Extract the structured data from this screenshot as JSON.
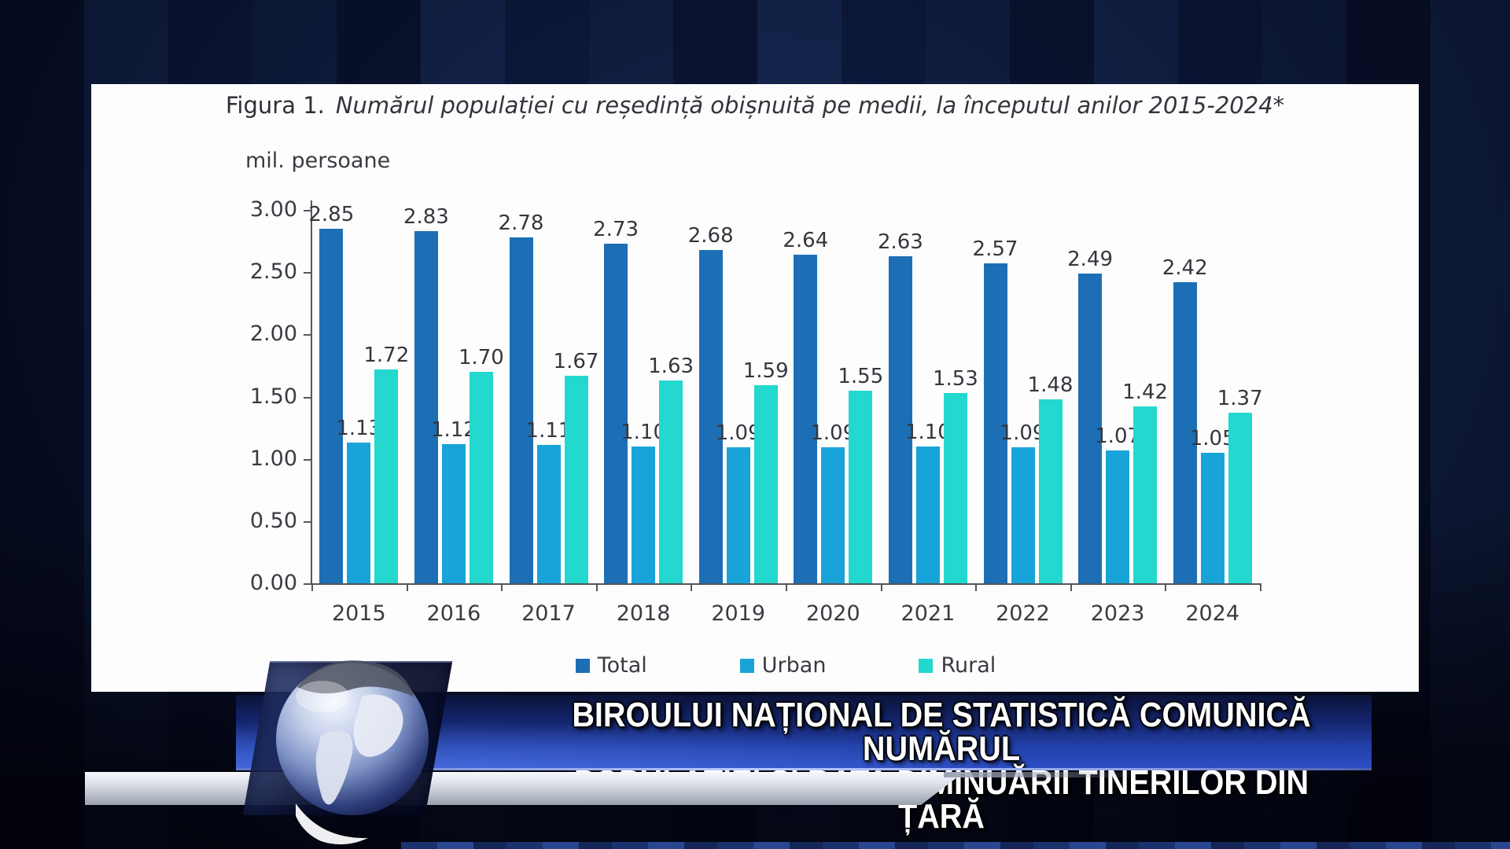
{
  "figure": {
    "label": "Figura 1.",
    "title": "Numărul populației cu reședință obișnuită pe medii, la începutul anilor 2015-2024*"
  },
  "chart_data": {
    "type": "bar",
    "title": "Numărul populației cu reședință obișnuită pe medii, la începutul anilor 2015-2024*",
    "ylabel": "mil. persoane",
    "xlabel": "",
    "ylim": [
      0,
      3.0
    ],
    "yticks": [
      "0.00",
      "0.50",
      "1.00",
      "1.50",
      "2.00",
      "2.50",
      "3.00"
    ],
    "grid": false,
    "legend_position": "bottom",
    "categories": [
      "2015",
      "2016",
      "2017",
      "2018",
      "2019",
      "2020",
      "2021",
      "2022",
      "2023",
      "2024"
    ],
    "series": [
      {
        "name": "Total",
        "color": "#1d6fb5",
        "values": [
          2.85,
          2.83,
          2.78,
          2.73,
          2.68,
          2.64,
          2.63,
          2.57,
          2.49,
          2.42
        ],
        "labels": [
          "2.85",
          "2.83",
          "2.78",
          "2.73",
          "2.68",
          "2.64",
          "2.63",
          "2.57",
          "2.49",
          "2.42"
        ]
      },
      {
        "name": "Urban",
        "color": "#18a4d8",
        "values": [
          1.13,
          1.12,
          1.11,
          1.1,
          1.09,
          1.09,
          1.1,
          1.09,
          1.07,
          1.05
        ],
        "labels": [
          "1.13",
          "1.12",
          "1.11",
          "1.10",
          "1.09",
          "1.09",
          "1.10",
          "1.09",
          "1.07",
          "1.05"
        ]
      },
      {
        "name": "Rural",
        "color": "#23d8ce",
        "values": [
          1.72,
          1.7,
          1.67,
          1.63,
          1.59,
          1.55,
          1.53,
          1.48,
          1.42,
          1.37
        ],
        "labels": [
          "1.72",
          "1.70",
          "1.67",
          "1.63",
          "1.59",
          "1.55",
          "1.53",
          "1.48",
          "1.42",
          "1.37"
        ]
      }
    ]
  },
  "banner": {
    "line1": "BIROULUI NAȚIONAL DE STATISTICĂ COMUNICĂ NUMĂRUL",
    "line2": "POPULAȚIEI ȘI RATA DIMINUĂRII TINERILOR DIN ȚARĂ"
  }
}
